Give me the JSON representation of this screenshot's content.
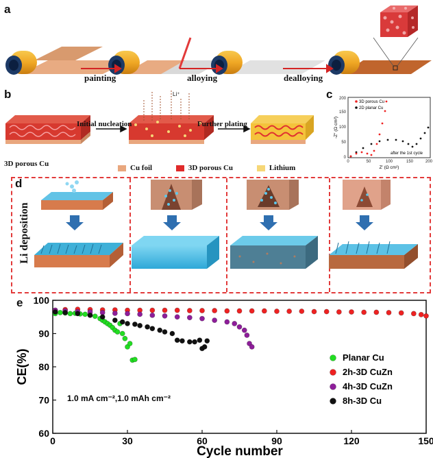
{
  "panels": {
    "a": "a",
    "b": "b",
    "c": "c",
    "d": "d",
    "e": "e"
  },
  "panel_a": {
    "steps": [
      "painting",
      "alloying",
      "dealloying"
    ]
  },
  "panel_b": {
    "ion_label": "Li⁺",
    "arrow1": "Initial nucleation",
    "arrow2": "Further plating",
    "substrate_label": "3D porous Cu",
    "legend": [
      {
        "label": "Cu foil",
        "color": "#e9a77e"
      },
      {
        "label": "3D porous Cu",
        "color": "#e02a2a"
      },
      {
        "label": "Lithium",
        "color": "#f6d777"
      }
    ]
  },
  "panel_c": {
    "legend": [
      "3D porous Cu",
      "2D planar Cu"
    ],
    "annotation": "after the 1st cycle",
    "ylabel": "-Z″ (Ω cm²)",
    "xlabel": "Z′ (Ω cm²)",
    "x_ticks": [
      "0",
      "50",
      "100",
      "150",
      "200"
    ],
    "y_ticks": [
      "0",
      "50",
      "100",
      "150",
      "200"
    ]
  },
  "panel_d": {
    "side_label": "Li deposition"
  },
  "chart_data": {
    "type": "scatter",
    "xlabel": "Cycle number",
    "ylabel": "CE(%)",
    "xlim": [
      0,
      150
    ],
    "ylim": [
      60,
      100
    ],
    "x_ticks": [
      "0",
      "30",
      "60",
      "90",
      "120",
      "150"
    ],
    "y_ticks": [
      "60",
      "70",
      "80",
      "90",
      "100"
    ],
    "annotation": "1.0 mA cm⁻²,1.0 mAh cm⁻²",
    "legend_position": "bottom-right",
    "series": [
      {
        "name": "Planar Cu",
        "color": "#22dd22",
        "x": [
          1,
          3,
          5,
          7,
          9,
          11,
          13,
          15,
          17,
          19,
          20,
          21,
          22,
          23,
          24,
          25,
          26,
          27,
          28,
          29,
          30,
          31,
          32,
          33
        ],
        "y": [
          96,
          96.3,
          96.2,
          96,
          96.1,
          95.9,
          95.8,
          95.6,
          95.2,
          94.5,
          94,
          93.5,
          93,
          92.5,
          91.8,
          91,
          90.5,
          93,
          90,
          88.5,
          86,
          87,
          82,
          82.2
        ]
      },
      {
        "name": "2h-3D CuZn",
        "color": "#ee2222",
        "x": [
          1,
          5,
          10,
          15,
          20,
          25,
          30,
          35,
          40,
          45,
          50,
          55,
          60,
          65,
          70,
          75,
          80,
          85,
          90,
          95,
          100,
          105,
          110,
          115,
          120,
          125,
          130,
          135,
          140,
          145,
          148,
          150
        ],
        "y": [
          97,
          97.2,
          97.3,
          97.2,
          97.1,
          97.1,
          97,
          97,
          97,
          97,
          97,
          96.9,
          96.9,
          96.9,
          96.8,
          96.8,
          96.8,
          96.8,
          96.7,
          96.7,
          96.7,
          96.6,
          96.6,
          96.5,
          96.5,
          96.4,
          96.4,
          96.3,
          96.2,
          96,
          95.7,
          95.3
        ]
      },
      {
        "name": "4h-3D CuZn",
        "color": "#8e1e9a",
        "x": [
          1,
          5,
          10,
          15,
          20,
          25,
          30,
          35,
          40,
          45,
          50,
          55,
          60,
          65,
          70,
          73,
          75,
          77,
          78,
          79,
          80
        ],
        "y": [
          97,
          96.8,
          96.6,
          96.5,
          96.3,
          96.1,
          96,
          95.8,
          95.5,
          95.3,
          95,
          94.8,
          94.5,
          94,
          93.5,
          93,
          92,
          91,
          89.5,
          87,
          86
        ]
      },
      {
        "name": "8h-3D Cu",
        "color": "#111111",
        "x": [
          1,
          5,
          10,
          15,
          20,
          25,
          28,
          30,
          33,
          35,
          38,
          40,
          43,
          45,
          48,
          50,
          52,
          55,
          57,
          59,
          60,
          61,
          62
        ],
        "y": [
          96.5,
          96.3,
          96,
          95.5,
          95,
          94,
          93.5,
          93,
          92.8,
          92.4,
          92,
          91.5,
          91,
          90.5,
          90,
          88,
          87.8,
          87.5,
          87.5,
          88,
          85.5,
          86,
          87.8
        ]
      }
    ]
  }
}
